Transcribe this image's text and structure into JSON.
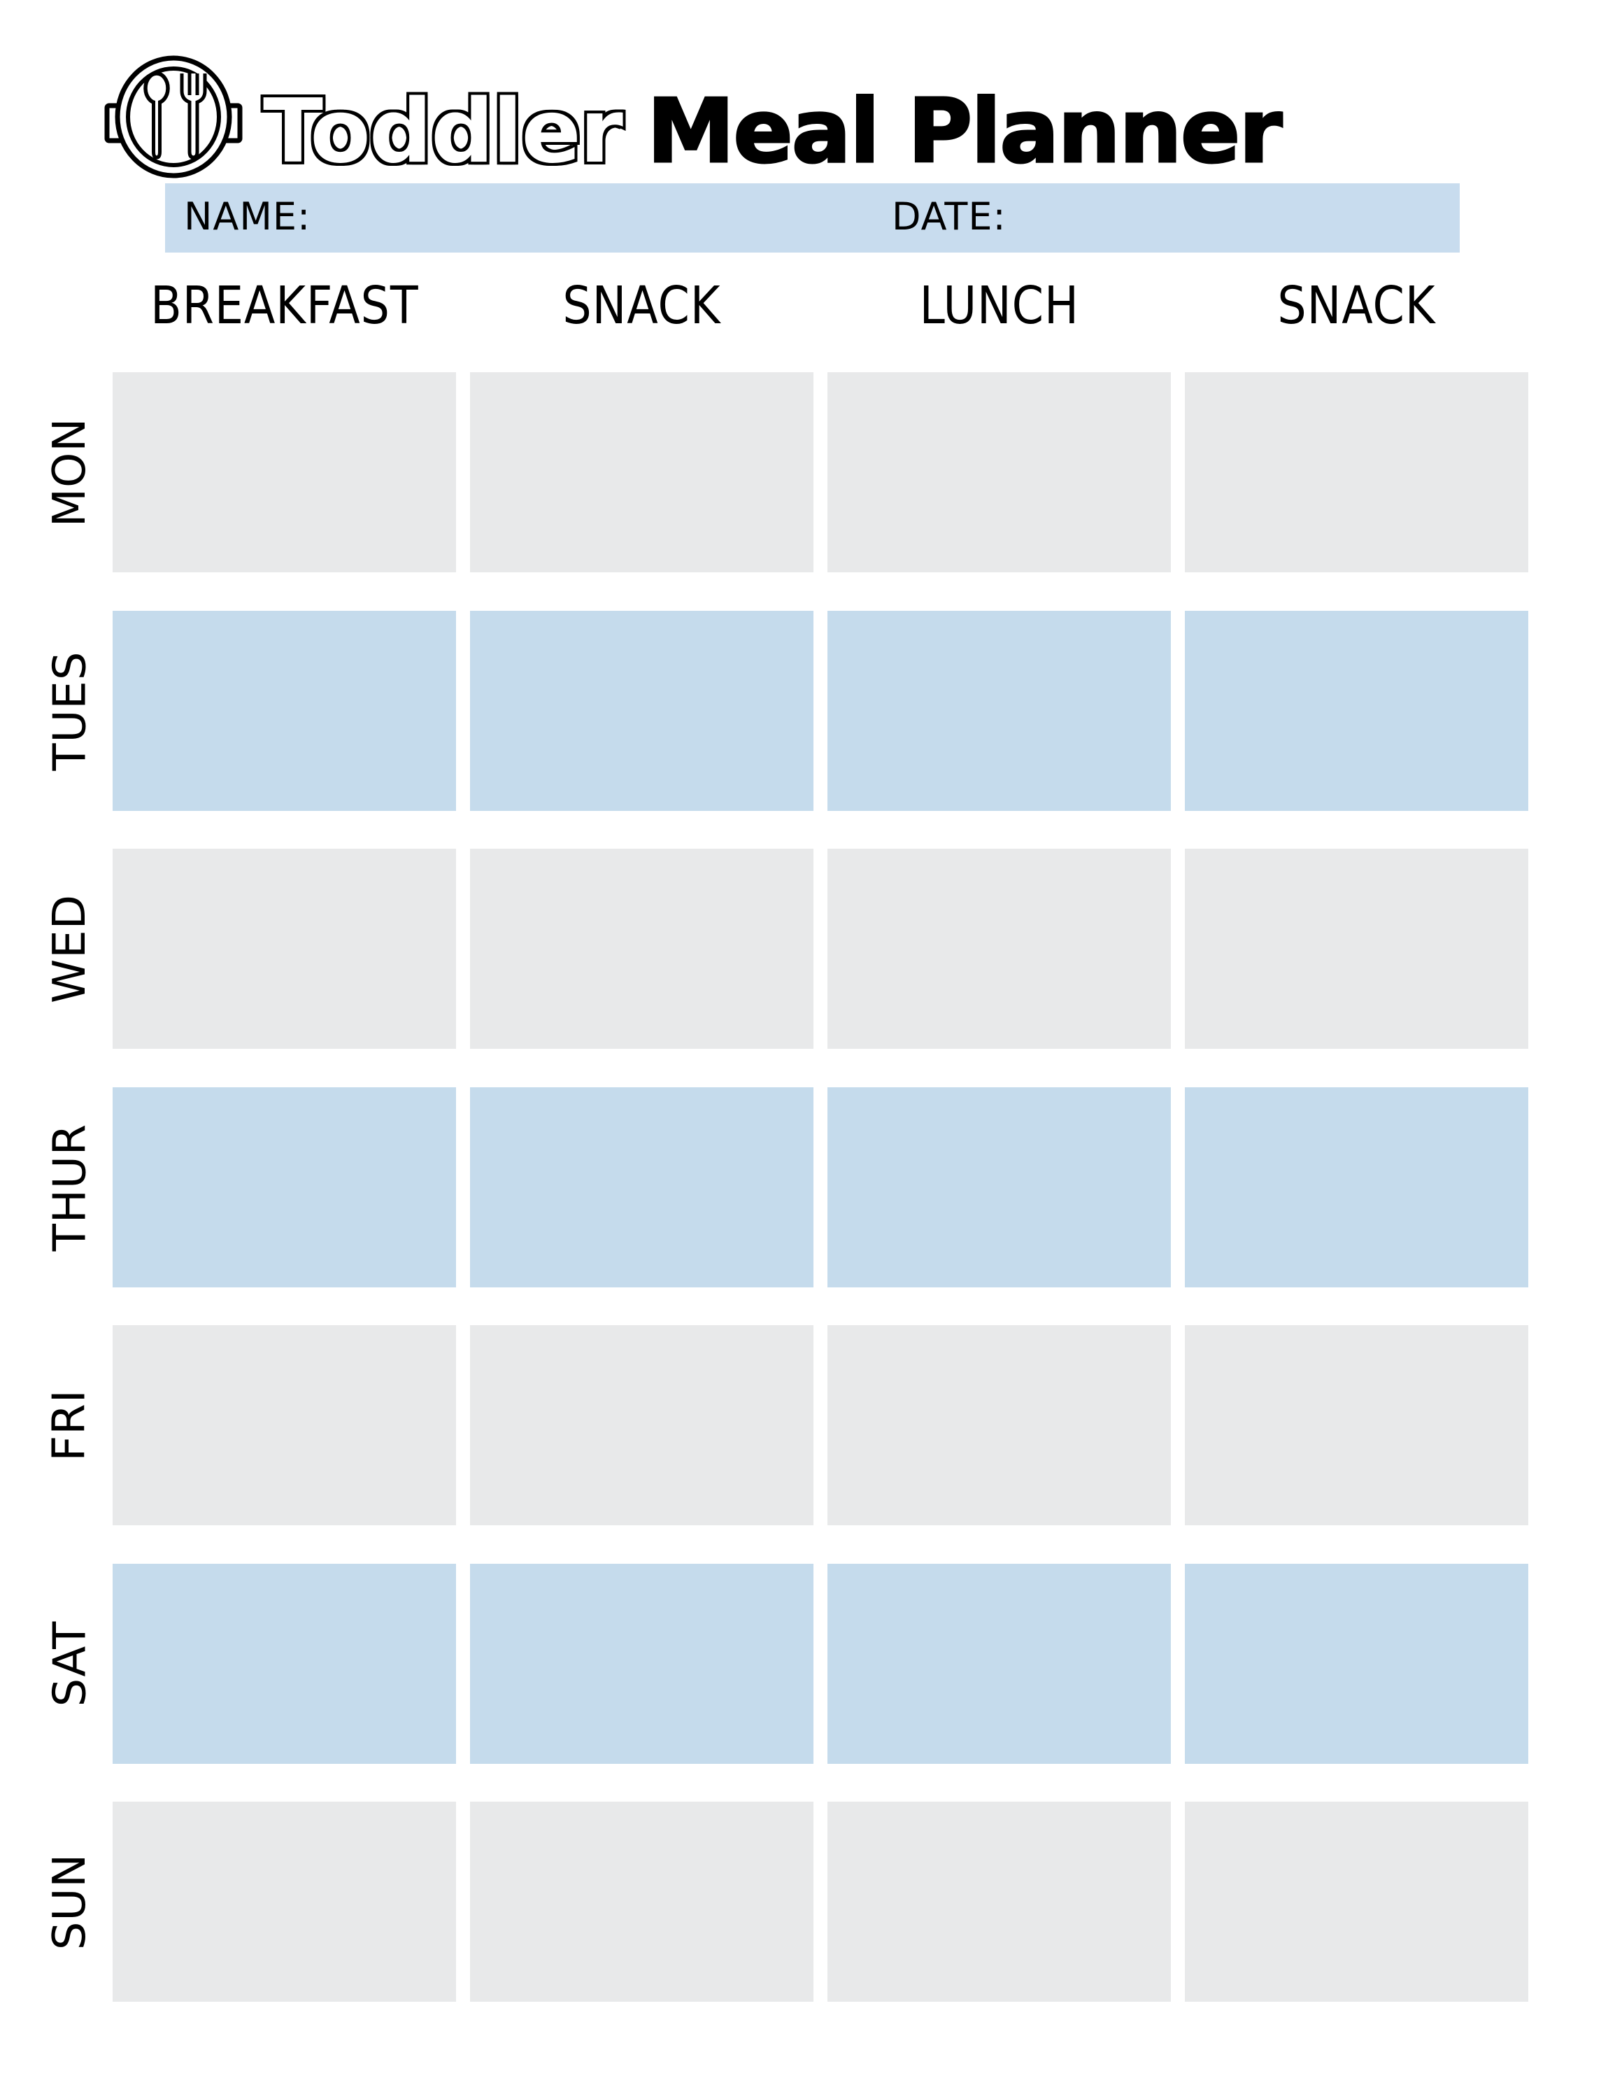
{
  "page_title": {
    "word_outline": "Toddler",
    "word_solid": "Meal Planner"
  },
  "logo_icon": "plate-and-cutlery-icon",
  "form": {
    "name_label": "NAME:",
    "name_value": "",
    "date_label": "DATE:",
    "date_value": ""
  },
  "meal_columns": [
    "BREAKFAST",
    "SNACK",
    "LUNCH",
    "SNACK"
  ],
  "days": [
    "MON",
    "TUES",
    "WED",
    "THUR",
    "FRI",
    "SAT",
    "SUN"
  ],
  "colors": {
    "banner_blue": "#c8dcee",
    "row_blue": "#c5dbec",
    "row_gray": "#e8e9ea",
    "ink": "#000000"
  }
}
